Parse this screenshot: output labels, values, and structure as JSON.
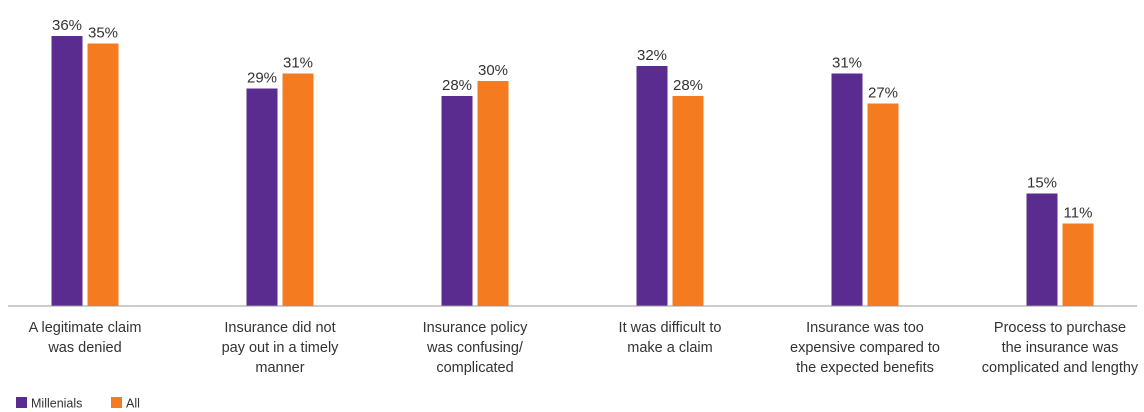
{
  "chart_data": {
    "type": "bar",
    "title": "",
    "xlabel": "",
    "ylabel": "",
    "ylim": [
      0,
      40
    ],
    "grid": false,
    "legend": "bottom-left",
    "categories": [
      [
        "A legitimate claim",
        "was denied"
      ],
      [
        "Insurance did not",
        "pay out in a timely",
        "manner"
      ],
      [
        "Insurance policy",
        "was confusing/",
        "complicated"
      ],
      [
        "It was difficult to",
        "make a claim"
      ],
      [
        "Insurance was too",
        "expensive compared to",
        "the expected benefits"
      ],
      [
        "Process to purchase",
        "the insurance was",
        "complicated and lengthy"
      ]
    ],
    "series": [
      {
        "name": "Millenials",
        "color": "#5b2c8f",
        "values": [
          36,
          29,
          28,
          32,
          31,
          15
        ],
        "labels": [
          "36%",
          "29%",
          "28%",
          "32%",
          "31%",
          "15%"
        ]
      },
      {
        "name": "All",
        "color": "#f47b20",
        "values": [
          35,
          31,
          30,
          28,
          27,
          11
        ],
        "labels": [
          "35%",
          "31%",
          "30%",
          "28%",
          "27%",
          "11%"
        ]
      }
    ]
  }
}
